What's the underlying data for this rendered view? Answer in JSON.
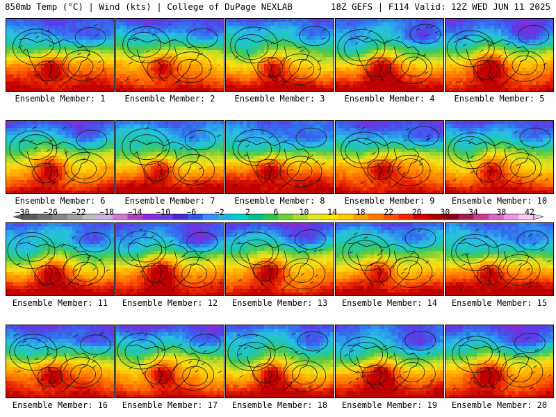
{
  "header": {
    "left_title": "850mb Temp (°C) | Wind (kts) | College of DuPage NEXLAB",
    "right_title": "18Z GEFS | F114 Valid: 12Z WED JUN 11 2025"
  },
  "members": [
    {
      "label": "Ensemble Member: 1"
    },
    {
      "label": "Ensemble Member: 2"
    },
    {
      "label": "Ensemble Member: 3"
    },
    {
      "label": "Ensemble Member: 4"
    },
    {
      "label": "Ensemble Member: 5"
    },
    {
      "label": "Ensemble Member: 6"
    },
    {
      "label": "Ensemble Member: 7"
    },
    {
      "label": "Ensemble Member: 8"
    },
    {
      "label": "Ensemble Member: 9"
    },
    {
      "label": "Ensemble Member: 10"
    },
    {
      "label": "Ensemble Member: 11"
    },
    {
      "label": "Ensemble Member: 12"
    },
    {
      "label": "Ensemble Member: 13"
    },
    {
      "label": "Ensemble Member: 14"
    },
    {
      "label": "Ensemble Member: 15"
    },
    {
      "label": "Ensemble Member: 16"
    },
    {
      "label": "Ensemble Member: 17"
    },
    {
      "label": "Ensemble Member: 18"
    },
    {
      "label": "Ensemble Member: 19"
    },
    {
      "label": "Ensemble Member: 20"
    }
  ],
  "colorbar": {
    "tick_labels": [
      "−30",
      "−26",
      "−22",
      "−18",
      "−14",
      "−10",
      "−6",
      "−2",
      "2",
      "6",
      "10",
      "14",
      "18",
      "22",
      "26",
      "30",
      "34",
      "38",
      "42"
    ],
    "colors": [
      "#5a5a5a",
      "#707070",
      "#888888",
      "#a0a0a0",
      "#bcbcbc",
      "#c8b4e0",
      "#d27ad2",
      "#b040c0",
      "#8a2be2",
      "#6a3ce0",
      "#4a2ad0",
      "#2e5ae6",
      "#3c8cff",
      "#1eb4e6",
      "#00d2d2",
      "#00c08c",
      "#28c850",
      "#6ad23c",
      "#aadc32",
      "#e6e628",
      "#ffe600",
      "#ffc800",
      "#ffa000",
      "#ff7800",
      "#ff5000",
      "#f02800",
      "#d20000",
      "#aa0000",
      "#8c0014",
      "#a01e50",
      "#c83c8c",
      "#dc64c8",
      "#f096e6",
      "#fac8f5"
    ]
  }
}
